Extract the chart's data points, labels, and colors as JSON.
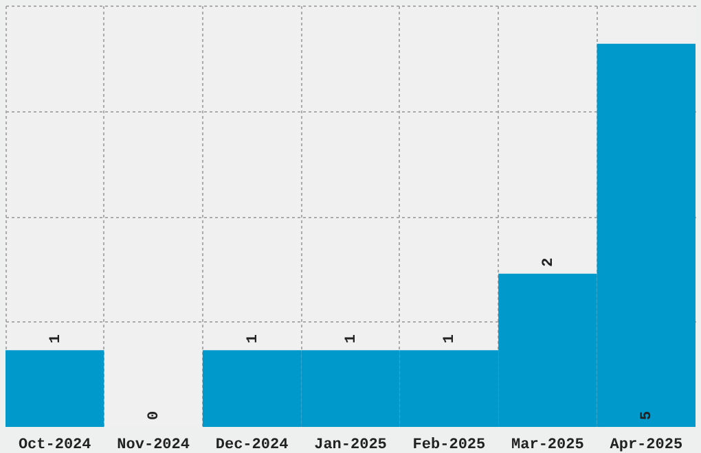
{
  "chart_data": {
    "type": "bar",
    "categories": [
      "Oct-2024",
      "Nov-2024",
      "Dec-2024",
      "Jan-2025",
      "Feb-2025",
      "Mar-2025",
      "Apr-2025"
    ],
    "values": [
      1,
      0,
      1,
      1,
      1,
      2,
      5
    ],
    "color": "#0099cc",
    "data_labels": true,
    "grid": true,
    "tick_labels": "x",
    "ylim": [
      0,
      5.5
    ],
    "yticks": [
      {
        "value": 1.375,
        "label": null
      },
      {
        "value": 2.75,
        "label": null
      },
      {
        "value": 4.125,
        "label": null
      },
      {
        "value": 5.5,
        "label": null
      }
    ]
  }
}
